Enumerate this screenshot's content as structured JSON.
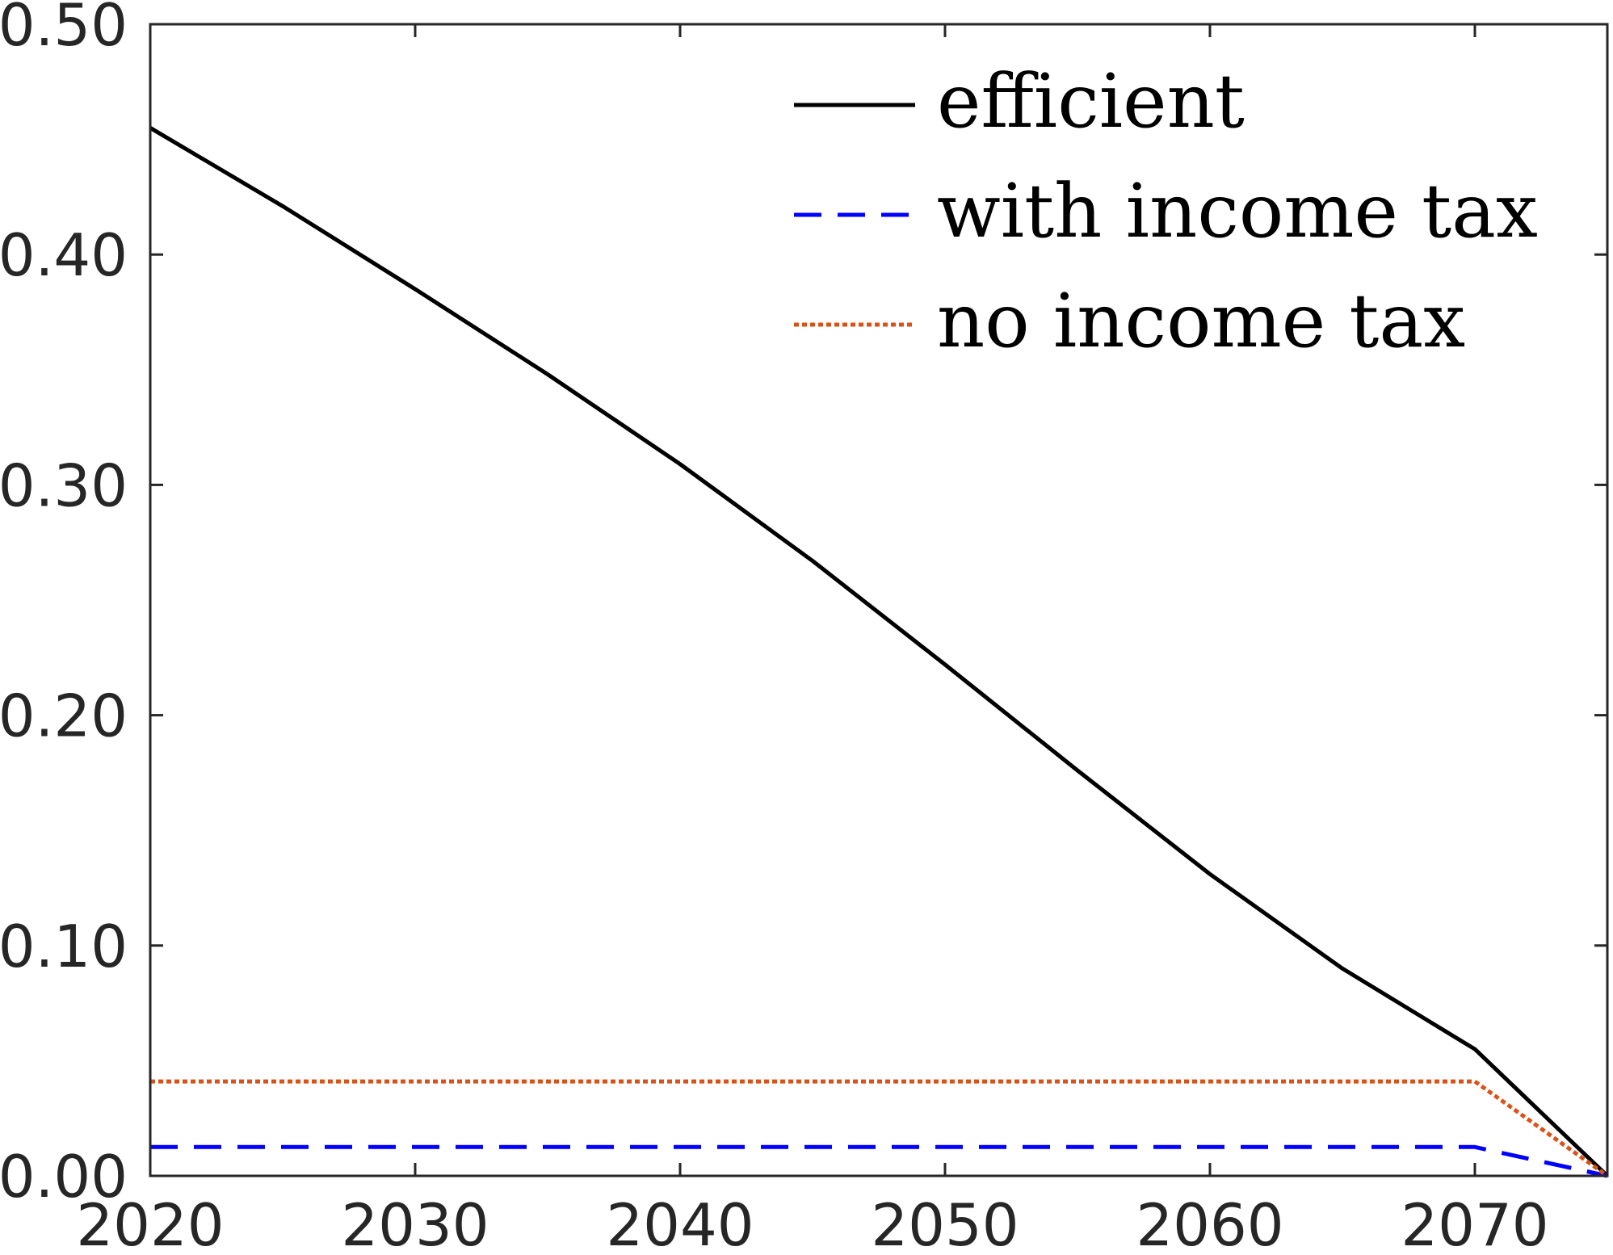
{
  "chart_data": {
    "type": "line",
    "title": "",
    "xlabel": "",
    "ylabel": "",
    "xlim": [
      2020,
      2075
    ],
    "ylim": [
      0,
      0.5
    ],
    "xticks": [
      2020,
      2030,
      2040,
      2050,
      2060,
      2070
    ],
    "xtick_labels": [
      "2020",
      "2030",
      "2040",
      "2050",
      "2060",
      "2070"
    ],
    "yticks": [
      0,
      0.1,
      0.2,
      0.3,
      0.4,
      0.5
    ],
    "ytick_labels": [
      "0.00",
      "0.10",
      "0.20",
      "0.30",
      "0.40",
      "0.50"
    ],
    "grid": false,
    "legend_position": "top-right",
    "series": [
      {
        "name": "efficient",
        "color": "#000000",
        "style": "solid",
        "x": [
          2020,
          2025,
          2030,
          2035,
          2040,
          2045,
          2050,
          2055,
          2060,
          2065,
          2070,
          2075
        ],
        "y": [
          0.455,
          0.421,
          0.385,
          0.348,
          0.309,
          0.267,
          0.222,
          0.176,
          0.131,
          0.09,
          0.055,
          0.0
        ]
      },
      {
        "name": "with income tax",
        "color": "#0000ff",
        "style": "dashed",
        "x": [
          2020,
          2070,
          2075
        ],
        "y": [
          0.0125,
          0.0125,
          0.0
        ]
      },
      {
        "name": "no income tax",
        "color": "#d95319",
        "style": "dotted",
        "x": [
          2020,
          2070,
          2075
        ],
        "y": [
          0.041,
          0.041,
          0.0
        ]
      }
    ]
  }
}
